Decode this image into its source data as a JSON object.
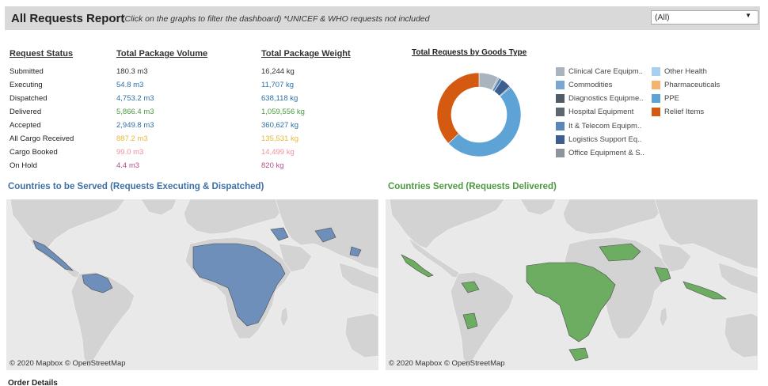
{
  "header": {
    "title": "All Requests Report",
    "subtitle": "(Click on the graphs to filter the dashboard)  *UNICEF & WHO requests not included",
    "filter_value": "(All)"
  },
  "status": {
    "headers": [
      "Request Status",
      "Total Package Volume",
      "Total Package Weight"
    ],
    "rows": [
      {
        "label": "Submitted",
        "volume": "180.3 m3",
        "weight": "16,244 kg",
        "color": "#333333"
      },
      {
        "label": "Executing",
        "volume": "54.8 m3",
        "weight": "11,707 kg",
        "color": "#2b6fa8"
      },
      {
        "label": "Dispatched",
        "volume": "4,753.2 m3",
        "weight": "638,118 kg",
        "color": "#2b6fa8"
      },
      {
        "label": "Delivered",
        "volume": "5,866.4 m3",
        "weight": "1,059,556 kg",
        "color": "#4a9a3d"
      },
      {
        "label": "Accepted",
        "volume": "2,949.8 m3",
        "weight": "360,627 kg",
        "color": "#2b6fa8"
      },
      {
        "label": "All Cargo Received",
        "volume": "887.2 m3",
        "weight": "135,531 kg",
        "color": "#e8b83a"
      },
      {
        "label": "Cargo Booked",
        "volume": "99.0 m3",
        "weight": "14,499 kg",
        "color": "#ef8fa0"
      },
      {
        "label": "On Hold",
        "volume": "4.4 m3",
        "weight": "820 kg",
        "color": "#b4508a"
      }
    ]
  },
  "donut": {
    "title": "Total Requests by Goods Type",
    "segments": [
      {
        "name": "Clinical Care Equipm..",
        "fraction": 0.075,
        "color": "#a9b4bf"
      },
      {
        "name": "Office Equipment & S..",
        "fraction": 0.005,
        "color": "#8d949b"
      },
      {
        "name": "It & Telecom Equipm..",
        "fraction": 0.012,
        "color": "#5b87b8"
      },
      {
        "name": "Logistics Support Eq..",
        "fraction": 0.04,
        "color": "#3d5f8f"
      },
      {
        "name": "Diagnostics Equipme..",
        "fraction": 0.004,
        "color": "#4f5b66"
      },
      {
        "name": "PPE",
        "fraction": 0.494,
        "color": "#5ea3d6"
      },
      {
        "name": "Relief Items",
        "fraction": 0.37,
        "color": "#d45a12"
      }
    ],
    "legend_left": [
      {
        "name": "Clinical Care Equipm..",
        "color": "#a9b4bf"
      },
      {
        "name": "Commodities",
        "color": "#7aa7cf"
      },
      {
        "name": "Diagnostics Equipme..",
        "color": "#4f5b66"
      },
      {
        "name": "Hospital Equipment",
        "color": "#5d6770"
      },
      {
        "name": "It & Telecom Equipm..",
        "color": "#5b87b8"
      },
      {
        "name": "Logistics Support Eq..",
        "color": "#3d5f8f"
      },
      {
        "name": "Office Equipment & S..",
        "color": "#8d949b"
      }
    ],
    "legend_right": [
      {
        "name": "Other Health",
        "color": "#a8cfee"
      },
      {
        "name": "Pharmaceuticals",
        "color": "#f6b36f"
      },
      {
        "name": "PPE",
        "color": "#5ea3d6"
      },
      {
        "name": "Relief Items",
        "color": "#d45a12"
      }
    ]
  },
  "maps": {
    "left": {
      "title": "Countries to be Served (Requests Executing & Dispatched)",
      "title_color": "#3e70a8",
      "fill": "#6f8fbb",
      "credit": "© 2020 Mapbox  © OpenStreetMap"
    },
    "right": {
      "title": "Countries Served (Requests Delivered)",
      "title_color": "#4c9a3f",
      "fill": "#6cad61",
      "credit": "© 2020 Mapbox  © OpenStreetMap"
    },
    "land_color": "#d3d3d3"
  },
  "footer": {
    "order_details": "Order Details"
  }
}
